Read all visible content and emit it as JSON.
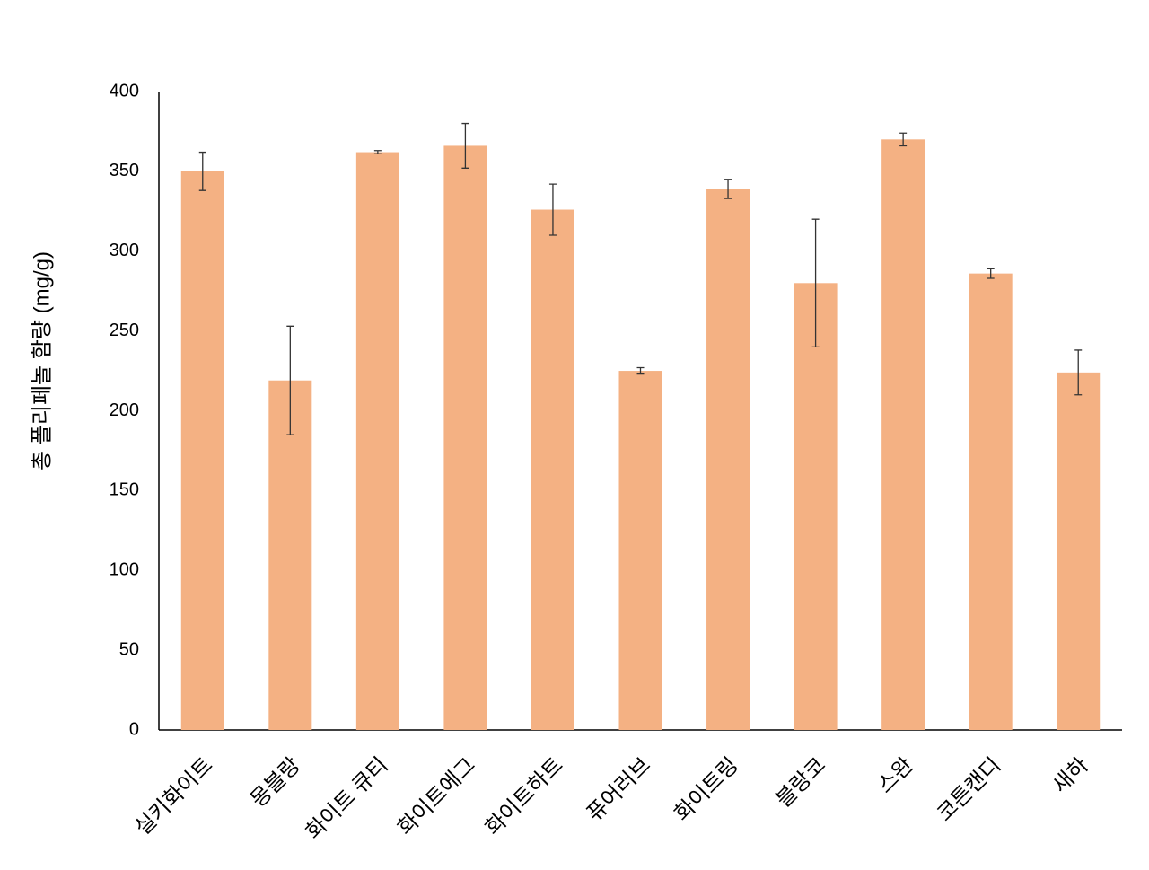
{
  "chart_data": {
    "type": "bar",
    "y_label": "총 폴리페놀 함량 (mg/g)",
    "categories": [
      "실키화이트",
      "몽블랑",
      "화이트 큐티",
      "화이트에그",
      "화이트하트",
      "퓨어러브",
      "화이트링",
      "블랑코",
      "스완",
      "코튼캔디",
      "새하"
    ],
    "values": [
      350,
      219,
      362,
      366,
      326,
      225,
      339,
      280,
      370,
      286,
      224
    ],
    "errors": [
      12,
      34,
      1,
      14,
      16,
      2,
      6,
      40,
      4,
      3,
      14
    ],
    "color": "#f4b183",
    "ylim": [
      0,
      400
    ],
    "yticks": [
      0,
      50,
      100,
      150,
      200,
      250,
      300,
      350,
      400
    ],
    "grid": false
  }
}
